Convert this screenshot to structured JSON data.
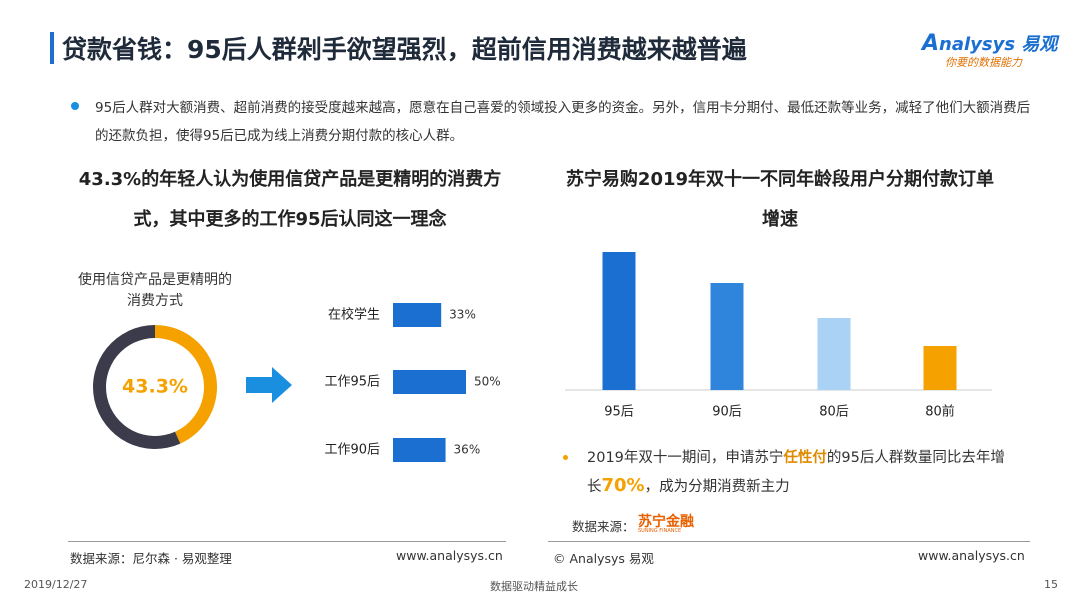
{
  "header": {
    "title": "贷款省钱：95后人群剁手欲望强烈，超前信用消费越来越普遍",
    "logo": "nalysys 易观",
    "logo_initial": "A",
    "tagline": "你要的数据能力"
  },
  "bullet": "95后人群对大额消费、超前消费的接受度越来越高，愿意在自己喜爱的领域投入更多的资金。另外，信用卡分期付、最低还款等业务，减轻了他们大额消费后的还款负担，使得95后已成为线上消费分期付款的核心人群。",
  "left": {
    "heading": "43.3%的年轻人认为使用信贷产品是更精明的消费方式，其中更多的工作95后认同这一理念",
    "source": "数据来源：尼尔森 · 易观整理",
    "url": "www.analysys.cn"
  },
  "right": {
    "heading": "苏宁易购2019年双十一不同年龄段用户分期付款订单增速",
    "note": [
      "2019年双十一期间，申请苏宁",
      "任性付",
      "的95后人群数量同比去年增长",
      "70%",
      "，成为分期消费新主力"
    ],
    "source": "数据来源：",
    "source_logo": "苏宁金融",
    "source_logo_en": "SUNING FINANCE",
    "copyright": "© Analysys 易观",
    "url": "www.analysys.cn"
  },
  "footer": {
    "date": "2019/12/27",
    "slogan": "数据驱动精益成长",
    "page": "15"
  },
  "chart_data": [
    {
      "type": "pie",
      "title": "使用信贷产品是更精明的消费方式",
      "values": [
        43.3,
        56.7
      ],
      "value_labels": [
        "43.3%",
        null
      ],
      "colors": [
        "#f5a100",
        "#3b3b4b"
      ]
    },
    {
      "type": "barh",
      "categories": [
        "在校学生",
        "工作95后",
        "工作90后"
      ],
      "values": [
        33,
        50,
        36
      ],
      "value_labels": [
        "33%",
        "50%",
        "36%"
      ],
      "color": "#1a6fd0"
    },
    {
      "type": "bar",
      "categories": [
        "95后",
        "90后",
        "80后",
        "80前"
      ],
      "values": [
        138,
        107,
        72,
        44
      ],
      "colors": [
        "#1a6fd0",
        "#2f84dc",
        "#a9d2f5",
        "#f5a100"
      ]
    }
  ]
}
